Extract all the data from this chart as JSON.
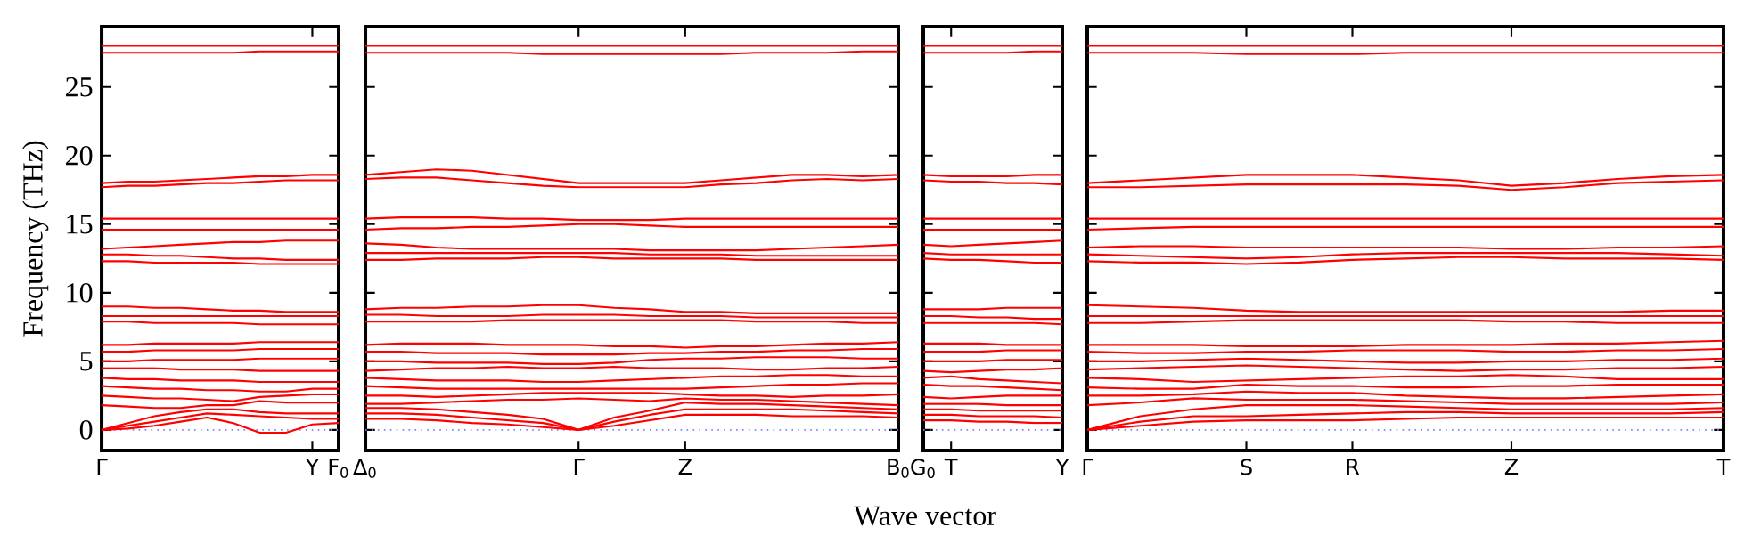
{
  "chart_data": [
    {
      "type": "line",
      "ylabel": "Frequency (THz)",
      "ylim": [
        -1.5,
        29.4
      ],
      "categories": [
        "Γ",
        null,
        null,
        null,
        null,
        null,
        null,
        null,
        "Y",
        "F$_{0}$"
      ],
      "yticks": [
        0,
        5,
        10,
        15,
        20,
        25
      ],
      "ref_lines": [
        {
          "axis": "y",
          "value": 0,
          "color": "#7f7fff",
          "line_style": "dotted"
        }
      ],
      "series": [
        {
          "color": "#ff0000",
          "values": [
            28.0,
            28.0,
            28.0,
            28.0,
            28.0,
            28.0,
            28.0,
            28.0,
            28.0,
            28.0
          ]
        },
        {
          "color": "#ff0000",
          "values": [
            27.5,
            27.5,
            27.5,
            27.5,
            27.5,
            27.5,
            27.6,
            27.6,
            27.6,
            27.6
          ]
        },
        {
          "color": "#ff0000",
          "values": [
            18.0,
            18.1,
            18.1,
            18.2,
            18.3,
            18.4,
            18.5,
            18.5,
            18.6,
            18.6
          ]
        },
        {
          "color": "#ff0000",
          "values": [
            17.7,
            17.8,
            17.8,
            17.9,
            18.0,
            18.0,
            18.1,
            18.2,
            18.2,
            18.2
          ]
        },
        {
          "color": "#ff0000",
          "values": [
            15.4,
            15.4,
            15.4,
            15.4,
            15.4,
            15.4,
            15.4,
            15.4,
            15.4,
            15.4
          ]
        },
        {
          "color": "#ff0000",
          "values": [
            14.6,
            14.6,
            14.6,
            14.6,
            14.6,
            14.6,
            14.6,
            14.6,
            14.6,
            14.6
          ]
        },
        {
          "color": "#ff0000",
          "values": [
            13.2,
            13.3,
            13.4,
            13.5,
            13.6,
            13.7,
            13.7,
            13.8,
            13.8,
            13.8
          ]
        },
        {
          "color": "#ff0000",
          "values": [
            12.8,
            12.8,
            12.7,
            12.7,
            12.6,
            12.5,
            12.5,
            12.4,
            12.4,
            12.4
          ]
        },
        {
          "color": "#ff0000",
          "values": [
            12.3,
            12.3,
            12.2,
            12.2,
            12.2,
            12.2,
            12.1,
            12.1,
            12.1,
            12.1
          ]
        },
        {
          "color": "#ff0000",
          "values": [
            9.0,
            9.0,
            8.9,
            8.9,
            8.8,
            8.7,
            8.7,
            8.6,
            8.6,
            8.6
          ]
        },
        {
          "color": "#ff0000",
          "values": [
            8.3,
            8.3,
            8.3,
            8.3,
            8.3,
            8.3,
            8.3,
            8.3,
            8.3,
            8.3
          ]
        },
        {
          "color": "#ff0000",
          "values": [
            7.9,
            7.9,
            7.8,
            7.8,
            7.8,
            7.8,
            7.7,
            7.7,
            7.7,
            7.7
          ]
        },
        {
          "color": "#ff0000",
          "values": [
            6.2,
            6.2,
            6.3,
            6.3,
            6.3,
            6.3,
            6.4,
            6.4,
            6.4,
            6.4
          ]
        },
        {
          "color": "#ff0000",
          "values": [
            5.7,
            5.7,
            5.8,
            5.8,
            5.8,
            5.8,
            5.9,
            5.9,
            5.9,
            5.9
          ]
        },
        {
          "color": "#ff0000",
          "values": [
            5.0,
            5.0,
            5.1,
            5.1,
            5.1,
            5.1,
            5.2,
            5.2,
            5.2,
            5.2
          ]
        },
        {
          "color": "#ff0000",
          "values": [
            4.5,
            4.5,
            4.5,
            4.4,
            4.4,
            4.4,
            4.3,
            4.3,
            4.3,
            4.3
          ]
        },
        {
          "color": "#ff0000",
          "values": [
            3.8,
            3.7,
            3.7,
            3.6,
            3.6,
            3.6,
            3.5,
            3.5,
            3.5,
            3.5
          ]
        },
        {
          "color": "#ff0000",
          "values": [
            3.2,
            3.1,
            3.0,
            3.0,
            2.9,
            2.9,
            2.8,
            2.8,
            3.0,
            3.0
          ]
        },
        {
          "color": "#ff0000",
          "values": [
            2.5,
            2.4,
            2.3,
            2.3,
            2.2,
            2.1,
            2.4,
            2.5,
            2.6,
            2.6
          ]
        },
        {
          "color": "#ff0000",
          "values": [
            1.8,
            1.7,
            1.6,
            1.6,
            1.8,
            1.8,
            2.1,
            2.0,
            2.0,
            2.0
          ]
        },
        {
          "color": "#ff0000",
          "values": [
            0,
            0.5,
            1.0,
            1.3,
            1.5,
            1.5,
            1.3,
            1.2,
            1.2,
            1.2
          ]
        },
        {
          "color": "#ff0000",
          "values": [
            0,
            0.3,
            0.6,
            0.9,
            1.2,
            1.1,
            1.0,
            0.9,
            0.8,
            0.8
          ]
        },
        {
          "color": "#ff0000",
          "values": [
            0,
            0.1,
            0.3,
            0.6,
            0.9,
            0.5,
            -0.2,
            -0.2,
            0.4,
            0.5
          ]
        }
      ]
    },
    {
      "type": "line",
      "xlabel": "Wave vector",
      "tick_labels": "x",
      "ylim": [
        -1.5,
        29.4
      ],
      "categories": [
        "Δ$_{0}$",
        null,
        null,
        null,
        null,
        null,
        "Γ",
        null,
        null,
        "Z",
        null,
        null,
        null,
        null,
        null,
        "B$_{0}$"
      ],
      "yticks": [
        0,
        5,
        10,
        15,
        20,
        25
      ],
      "ref_lines": [
        {
          "axis": "y",
          "value": 0,
          "color": "#7f7fff",
          "line_style": "dotted"
        }
      ],
      "series": [
        {
          "color": "#ff0000",
          "values": [
            28.0,
            28.0,
            28.0,
            28.0,
            28.0,
            28.0,
            28.0,
            28.0,
            28.0,
            28.0,
            28.0,
            28.0,
            28.0,
            28.0,
            28.0,
            28.0
          ]
        },
        {
          "color": "#ff0000",
          "values": [
            27.5,
            27.5,
            27.5,
            27.5,
            27.5,
            27.4,
            27.4,
            27.4,
            27.4,
            27.4,
            27.4,
            27.5,
            27.5,
            27.5,
            27.6,
            27.6
          ]
        },
        {
          "color": "#ff0000",
          "values": [
            18.6,
            18.8,
            19.0,
            18.9,
            18.6,
            18.3,
            18.0,
            18.0,
            18.0,
            18.0,
            18.2,
            18.4,
            18.6,
            18.6,
            18.5,
            18.6
          ]
        },
        {
          "color": "#ff0000",
          "values": [
            18.3,
            18.4,
            18.4,
            18.2,
            18.0,
            17.8,
            17.7,
            17.7,
            17.7,
            17.7,
            17.9,
            18.0,
            18.2,
            18.3,
            18.2,
            18.3
          ]
        },
        {
          "color": "#ff0000",
          "values": [
            15.4,
            15.5,
            15.5,
            15.5,
            15.4,
            15.4,
            15.3,
            15.3,
            15.3,
            15.4,
            15.4,
            15.4,
            15.4,
            15.4,
            15.4,
            15.4
          ]
        },
        {
          "color": "#ff0000",
          "values": [
            14.6,
            14.7,
            14.7,
            14.8,
            14.8,
            14.9,
            15.0,
            15.0,
            14.9,
            14.8,
            14.8,
            14.8,
            14.8,
            14.8,
            14.8,
            14.8
          ]
        },
        {
          "color": "#ff0000",
          "values": [
            13.6,
            13.5,
            13.3,
            13.2,
            13.2,
            13.2,
            13.2,
            13.2,
            13.1,
            13.1,
            13.1,
            13.1,
            13.2,
            13.3,
            13.4,
            13.5
          ]
        },
        {
          "color": "#ff0000",
          "values": [
            12.9,
            12.9,
            12.9,
            12.9,
            12.9,
            12.9,
            12.9,
            12.9,
            12.8,
            12.8,
            12.8,
            12.7,
            12.7,
            12.7,
            12.7,
            12.7
          ]
        },
        {
          "color": "#ff0000",
          "values": [
            12.4,
            12.4,
            12.5,
            12.5,
            12.5,
            12.6,
            12.6,
            12.5,
            12.5,
            12.5,
            12.5,
            12.4,
            12.4,
            12.4,
            12.4,
            12.4
          ]
        },
        {
          "color": "#ff0000",
          "values": [
            8.8,
            8.9,
            8.9,
            9.0,
            9.0,
            9.1,
            9.1,
            8.9,
            8.8,
            8.6,
            8.6,
            8.5,
            8.5,
            8.5,
            8.5,
            8.5
          ]
        },
        {
          "color": "#ff0000",
          "values": [
            8.4,
            8.4,
            8.3,
            8.3,
            8.3,
            8.4,
            8.4,
            8.4,
            8.3,
            8.3,
            8.3,
            8.2,
            8.2,
            8.2,
            8.2,
            8.2
          ]
        },
        {
          "color": "#ff0000",
          "values": [
            7.9,
            7.9,
            7.9,
            7.9,
            8.0,
            8.0,
            8.0,
            8.0,
            8.0,
            8.0,
            8.0,
            7.9,
            7.9,
            7.9,
            7.8,
            7.8
          ]
        },
        {
          "color": "#ff0000",
          "values": [
            6.2,
            6.3,
            6.3,
            6.3,
            6.2,
            6.2,
            6.2,
            6.1,
            6.1,
            6.0,
            6.1,
            6.1,
            6.2,
            6.3,
            6.3,
            6.4
          ]
        },
        {
          "color": "#ff0000",
          "values": [
            5.7,
            5.7,
            5.6,
            5.6,
            5.6,
            5.5,
            5.5,
            5.5,
            5.6,
            5.6,
            5.7,
            5.7,
            5.8,
            5.8,
            5.9,
            5.9
          ]
        },
        {
          "color": "#ff0000",
          "values": [
            5.0,
            5.0,
            4.9,
            4.9,
            4.9,
            4.8,
            4.8,
            4.9,
            5.1,
            5.2,
            5.2,
            5.3,
            5.3,
            5.3,
            5.2,
            5.2
          ]
        },
        {
          "color": "#ff0000",
          "values": [
            4.3,
            4.4,
            4.5,
            4.5,
            4.6,
            4.5,
            4.5,
            4.6,
            4.5,
            4.5,
            4.5,
            4.4,
            4.4,
            4.5,
            4.5,
            4.6
          ]
        },
        {
          "color": "#ff0000",
          "values": [
            3.8,
            3.7,
            3.6,
            3.6,
            3.6,
            3.5,
            3.5,
            3.6,
            3.7,
            3.8,
            3.9,
            3.9,
            4.0,
            4.0,
            3.9,
            3.9
          ]
        },
        {
          "color": "#ff0000",
          "values": [
            3.2,
            3.1,
            3.0,
            3.0,
            3.0,
            3.0,
            3.0,
            3.0,
            3.0,
            3.0,
            3.1,
            3.2,
            3.3,
            3.3,
            3.4,
            3.4
          ]
        },
        {
          "color": "#ff0000",
          "values": [
            2.5,
            2.5,
            2.4,
            2.5,
            2.6,
            2.7,
            2.7,
            2.7,
            2.7,
            2.6,
            2.5,
            2.5,
            2.4,
            2.5,
            2.5,
            2.6
          ]
        },
        {
          "color": "#ff0000",
          "values": [
            1.9,
            1.9,
            2.0,
            2.1,
            2.2,
            2.2,
            2.3,
            2.2,
            2.1,
            2.3,
            2.2,
            2.2,
            2.1,
            2.0,
            1.9,
            1.8
          ]
        },
        {
          "color": "#ff0000",
          "values": [
            1.6,
            1.6,
            1.5,
            1.3,
            1.1,
            0.8,
            0,
            0.9,
            1.4,
            2.0,
            1.9,
            1.9,
            1.8,
            1.7,
            1.6,
            1.5
          ]
        },
        {
          "color": "#ff0000",
          "values": [
            1.2,
            1.2,
            1.1,
            0.9,
            0.7,
            0.5,
            0,
            0.6,
            1.1,
            1.5,
            1.5,
            1.5,
            1.5,
            1.4,
            1.3,
            1.2
          ]
        },
        {
          "color": "#ff0000",
          "values": [
            0.8,
            0.8,
            0.7,
            0.5,
            0.4,
            0.2,
            0,
            0.3,
            0.7,
            1.1,
            1.1,
            1.1,
            1.0,
            1.0,
            1.0,
            0.9
          ]
        }
      ]
    },
    {
      "type": "line",
      "tick_labels": "x",
      "ylim": [
        -1.5,
        29.4
      ],
      "categories": [
        "G$_{0}$",
        "T",
        null,
        null,
        null,
        "Y"
      ],
      "yticks": [
        0,
        5,
        10,
        15,
        20,
        25
      ],
      "ref_lines": [
        {
          "axis": "y",
          "value": 0,
          "color": "#7f7fff",
          "line_style": "dotted"
        }
      ],
      "series": [
        {
          "color": "#ff0000",
          "values": [
            28.0,
            28.0,
            28.0,
            28.0,
            28.0,
            28.0
          ]
        },
        {
          "color": "#ff0000",
          "values": [
            27.5,
            27.5,
            27.5,
            27.5,
            27.6,
            27.6
          ]
        },
        {
          "color": "#ff0000",
          "values": [
            18.6,
            18.5,
            18.5,
            18.5,
            18.6,
            18.6
          ]
        },
        {
          "color": "#ff0000",
          "values": [
            18.2,
            18.1,
            18.1,
            18.0,
            18.0,
            17.9
          ]
        },
        {
          "color": "#ff0000",
          "values": [
            15.4,
            15.4,
            15.4,
            15.4,
            15.4,
            15.4
          ]
        },
        {
          "color": "#ff0000",
          "values": [
            14.6,
            14.6,
            14.6,
            14.6,
            14.6,
            14.6
          ]
        },
        {
          "color": "#ff0000",
          "values": [
            13.5,
            13.4,
            13.5,
            13.6,
            13.7,
            13.8
          ]
        },
        {
          "color": "#ff0000",
          "values": [
            12.9,
            12.8,
            12.8,
            12.8,
            12.8,
            12.8
          ]
        },
        {
          "color": "#ff0000",
          "values": [
            12.5,
            12.4,
            12.4,
            12.3,
            12.2,
            12.2
          ]
        },
        {
          "color": "#ff0000",
          "values": [
            8.8,
            8.8,
            8.8,
            8.9,
            8.9,
            8.9
          ]
        },
        {
          "color": "#ff0000",
          "values": [
            8.3,
            8.3,
            8.2,
            8.2,
            8.1,
            8.1
          ]
        },
        {
          "color": "#ff0000",
          "values": [
            7.8,
            7.8,
            7.8,
            7.8,
            7.8,
            7.7
          ]
        },
        {
          "color": "#ff0000",
          "values": [
            6.3,
            6.3,
            6.3,
            6.2,
            6.2,
            6.2
          ]
        },
        {
          "color": "#ff0000",
          "values": [
            5.7,
            5.7,
            5.7,
            5.8,
            5.8,
            5.8
          ]
        },
        {
          "color": "#ff0000",
          "values": [
            5.0,
            5.0,
            5.0,
            5.1,
            5.1,
            5.1
          ]
        },
        {
          "color": "#ff0000",
          "values": [
            4.3,
            4.2,
            4.3,
            4.4,
            4.4,
            4.5
          ]
        },
        {
          "color": "#ff0000",
          "values": [
            3.8,
            3.9,
            3.7,
            3.6,
            3.5,
            3.4
          ]
        },
        {
          "color": "#ff0000",
          "values": [
            3.3,
            3.2,
            3.2,
            3.1,
            3.0,
            2.9
          ]
        },
        {
          "color": "#ff0000",
          "values": [
            2.4,
            2.3,
            2.4,
            2.5,
            2.5,
            2.5
          ]
        },
        {
          "color": "#ff0000",
          "values": [
            1.9,
            1.9,
            1.9,
            1.8,
            1.8,
            1.8
          ]
        },
        {
          "color": "#ff0000",
          "values": [
            1.5,
            1.5,
            1.4,
            1.4,
            1.4,
            1.4
          ]
        },
        {
          "color": "#ff0000",
          "values": [
            1.1,
            1.1,
            1.0,
            1.0,
            1.0,
            0.9
          ]
        },
        {
          "color": "#ff0000",
          "values": [
            0.7,
            0.7,
            0.6,
            0.6,
            0.5,
            0.5
          ]
        }
      ]
    },
    {
      "type": "line",
      "tick_labels": "x",
      "ylim": [
        -1.5,
        29.4
      ],
      "categories": [
        "Γ",
        null,
        null,
        "S",
        null,
        "R",
        null,
        null,
        "Z",
        null,
        null,
        null,
        "T"
      ],
      "yticks": [
        0,
        5,
        10,
        15,
        20,
        25
      ],
      "ref_lines": [
        {
          "axis": "y",
          "value": 0,
          "color": "#7f7fff",
          "line_style": "dotted"
        }
      ],
      "series": [
        {
          "color": "#ff0000",
          "values": [
            28.0,
            28.0,
            28.0,
            28.0,
            28.0,
            28.0,
            28.0,
            28.0,
            28.0,
            28.0,
            28.0,
            28.0,
            28.0
          ]
        },
        {
          "color": "#ff0000",
          "values": [
            27.5,
            27.5,
            27.5,
            27.4,
            27.4,
            27.4,
            27.5,
            27.5,
            27.5,
            27.5,
            27.5,
            27.5,
            27.5
          ]
        },
        {
          "color": "#ff0000",
          "values": [
            18.0,
            18.2,
            18.4,
            18.6,
            18.6,
            18.6,
            18.4,
            18.2,
            17.8,
            18.0,
            18.3,
            18.5,
            18.6
          ]
        },
        {
          "color": "#ff0000",
          "values": [
            17.7,
            17.7,
            17.8,
            17.9,
            17.9,
            17.9,
            17.9,
            17.8,
            17.5,
            17.7,
            18.0,
            18.1,
            18.2
          ]
        },
        {
          "color": "#ff0000",
          "values": [
            15.4,
            15.4,
            15.4,
            15.4,
            15.4,
            15.4,
            15.4,
            15.4,
            15.4,
            15.4,
            15.4,
            15.4,
            15.4
          ]
        },
        {
          "color": "#ff0000",
          "values": [
            14.6,
            14.7,
            14.8,
            14.8,
            14.8,
            14.8,
            14.8,
            14.8,
            14.8,
            14.8,
            14.8,
            14.8,
            14.8
          ]
        },
        {
          "color": "#ff0000",
          "values": [
            13.3,
            13.4,
            13.4,
            13.3,
            13.3,
            13.3,
            13.3,
            13.3,
            13.2,
            13.2,
            13.3,
            13.3,
            13.4
          ]
        },
        {
          "color": "#ff0000",
          "values": [
            12.8,
            12.7,
            12.6,
            12.5,
            12.6,
            12.8,
            12.9,
            12.9,
            12.9,
            12.9,
            12.9,
            12.8,
            12.7
          ]
        },
        {
          "color": "#ff0000",
          "values": [
            12.3,
            12.2,
            12.2,
            12.1,
            12.2,
            12.4,
            12.5,
            12.6,
            12.6,
            12.5,
            12.5,
            12.5,
            12.4
          ]
        },
        {
          "color": "#ff0000",
          "values": [
            9.1,
            9.0,
            8.9,
            8.7,
            8.6,
            8.6,
            8.6,
            8.6,
            8.6,
            8.6,
            8.6,
            8.7,
            8.7
          ]
        },
        {
          "color": "#ff0000",
          "values": [
            8.3,
            8.3,
            8.3,
            8.3,
            8.3,
            8.3,
            8.3,
            8.3,
            8.3,
            8.3,
            8.3,
            8.3,
            8.3
          ]
        },
        {
          "color": "#ff0000",
          "values": [
            7.8,
            7.8,
            7.9,
            8.0,
            8.0,
            8.0,
            8.0,
            8.0,
            7.9,
            7.9,
            7.8,
            7.8,
            7.8
          ]
        },
        {
          "color": "#ff0000",
          "values": [
            6.2,
            6.2,
            6.2,
            6.1,
            6.1,
            6.1,
            6.2,
            6.2,
            6.2,
            6.3,
            6.3,
            6.4,
            6.5
          ]
        },
        {
          "color": "#ff0000",
          "values": [
            5.7,
            5.6,
            5.6,
            5.7,
            5.7,
            5.8,
            5.8,
            5.8,
            5.7,
            5.7,
            5.8,
            5.8,
            5.9
          ]
        },
        {
          "color": "#ff0000",
          "values": [
            5.0,
            5.0,
            5.1,
            5.2,
            5.1,
            5.0,
            4.9,
            4.9,
            5.0,
            5.0,
            5.1,
            5.1,
            5.2
          ]
        },
        {
          "color": "#ff0000",
          "values": [
            4.4,
            4.5,
            4.6,
            4.7,
            4.6,
            4.5,
            4.4,
            4.3,
            4.4,
            4.4,
            4.5,
            4.5,
            4.6
          ]
        },
        {
          "color": "#ff0000",
          "values": [
            3.8,
            3.7,
            3.5,
            3.6,
            3.7,
            3.8,
            3.9,
            3.9,
            4.0,
            3.9,
            3.7,
            3.7,
            3.7
          ]
        },
        {
          "color": "#ff0000",
          "values": [
            3.1,
            3.0,
            3.0,
            3.3,
            3.2,
            3.2,
            3.1,
            3.1,
            3.2,
            3.2,
            3.3,
            3.3,
            3.3
          ]
        },
        {
          "color": "#ff0000",
          "values": [
            2.5,
            2.5,
            2.6,
            2.8,
            2.7,
            2.7,
            2.5,
            2.4,
            2.3,
            2.3,
            2.4,
            2.5,
            2.6
          ]
        },
        {
          "color": "#ff0000",
          "values": [
            1.8,
            2.0,
            2.3,
            2.2,
            2.2,
            2.2,
            2.1,
            2.0,
            1.9,
            1.9,
            1.9,
            1.9,
            2.0
          ]
        },
        {
          "color": "#ff0000",
          "values": [
            0,
            1.0,
            1.5,
            1.8,
            1.8,
            1.8,
            1.7,
            1.6,
            1.5,
            1.5,
            1.5,
            1.5,
            1.6
          ]
        },
        {
          "color": "#ff0000",
          "values": [
            0,
            0.6,
            1.0,
            1.0,
            1.1,
            1.2,
            1.3,
            1.3,
            1.2,
            1.2,
            1.2,
            1.2,
            1.3
          ]
        },
        {
          "color": "#ff0000",
          "values": [
            0,
            0.3,
            0.6,
            0.7,
            0.7,
            0.7,
            0.8,
            0.9,
            0.9,
            0.9,
            0.9,
            0.9,
            0.9
          ]
        }
      ]
    }
  ]
}
